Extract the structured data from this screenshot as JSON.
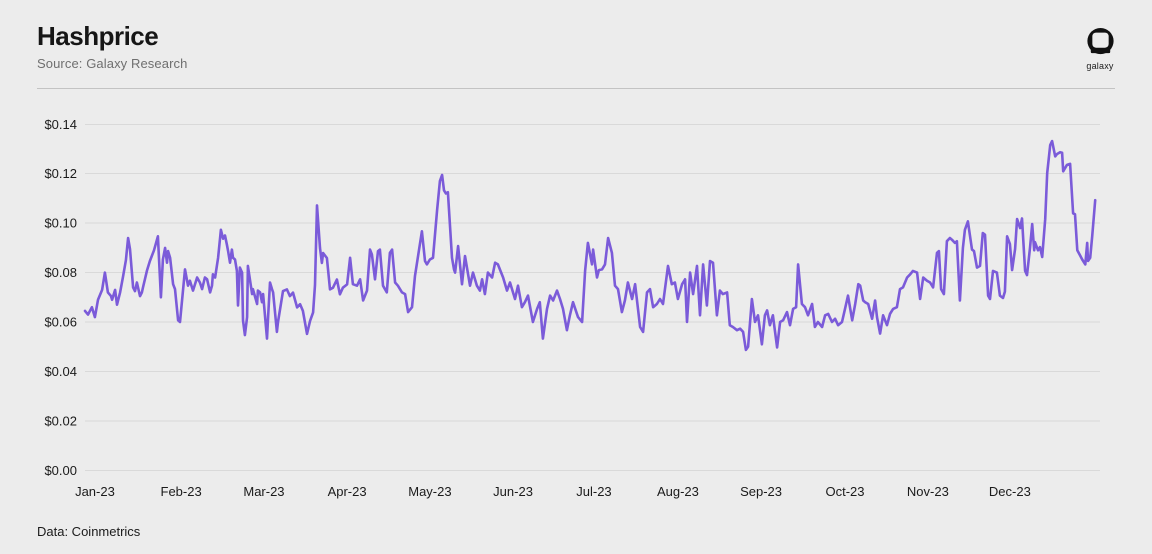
{
  "header": {
    "title": "Hashprice",
    "subtitle": "Source: Galaxy Research",
    "logo_label": "galaxy"
  },
  "footer": {
    "data_source": "Data: Coinmetrics"
  },
  "colors": {
    "background": "#ececec",
    "line": "#7b5bd9",
    "gridline": "#d9d9d9",
    "divider": "#c3c3c3",
    "axis_label": "#1b1b1b",
    "title": "#161616",
    "subtitle": "#6f6f6f",
    "logo": "#111111"
  },
  "chart_data": {
    "type": "line",
    "title": "Hashprice",
    "xlabel": "",
    "ylabel": "",
    "unit": "USD",
    "grid": "horizontal",
    "legend": "none",
    "ylim": [
      0,
      0.14
    ],
    "y_tick_step": 0.02,
    "y_tick_labels": [
      "$0.00",
      "$0.02",
      "$0.04",
      "$0.06",
      "$0.08",
      "$0.10",
      "$0.12",
      "$0.14"
    ],
    "x_tick_labels": [
      "Jan-23",
      "Feb-23",
      "Mar-23",
      "Apr-23",
      "May-23",
      "Jun-23",
      "Jul-23",
      "Aug-23",
      "Sep-23",
      "Oct-23",
      "Nov-23",
      "Dec-23"
    ],
    "x_tick_days": [
      3.6,
      34.8,
      64.8,
      94.9,
      124.9,
      155.0,
      184.3,
      214.7,
      244.8,
      275.2,
      305.2,
      334.9
    ],
    "x_range_days": [
      0,
      365.8
    ],
    "points": [
      [
        0,
        0.0645
      ],
      [
        1.1,
        0.063
      ],
      [
        2.5,
        0.066
      ],
      [
        3.6,
        0.062
      ],
      [
        4.7,
        0.069
      ],
      [
        6.2,
        0.073
      ],
      [
        7.2,
        0.08
      ],
      [
        8.3,
        0.072
      ],
      [
        9.4,
        0.0705
      ],
      [
        9.8,
        0.069
      ],
      [
        10.9,
        0.073
      ],
      [
        11.6,
        0.067
      ],
      [
        12.7,
        0.072
      ],
      [
        13.8,
        0.0785
      ],
      [
        14.8,
        0.085
      ],
      [
        15.6,
        0.094
      ],
      [
        16.3,
        0.0895
      ],
      [
        17,
        0.08
      ],
      [
        17.4,
        0.074
      ],
      [
        18.1,
        0.0725
      ],
      [
        18.8,
        0.076
      ],
      [
        19.9,
        0.0705
      ],
      [
        20.6,
        0.072
      ],
      [
        21,
        0.074
      ],
      [
        22.5,
        0.081
      ],
      [
        23.5,
        0.0847
      ],
      [
        25,
        0.089
      ],
      [
        26.4,
        0.0947
      ],
      [
        27.5,
        0.07
      ],
      [
        28.2,
        0.0853
      ],
      [
        29,
        0.09
      ],
      [
        29.7,
        0.084
      ],
      [
        30.1,
        0.0887
      ],
      [
        30.8,
        0.086
      ],
      [
        31.9,
        0.0753
      ],
      [
        32.6,
        0.0733
      ],
      [
        33.7,
        0.0607
      ],
      [
        34.4,
        0.06
      ],
      [
        36.2,
        0.0813
      ],
      [
        37.3,
        0.0747
      ],
      [
        38,
        0.0767
      ],
      [
        39.1,
        0.0727
      ],
      [
        40.6,
        0.078
      ],
      [
        41.6,
        0.076
      ],
      [
        42.4,
        0.0733
      ],
      [
        43.4,
        0.078
      ],
      [
        44.2,
        0.0773
      ],
      [
        45.3,
        0.072
      ],
      [
        46,
        0.0747
      ],
      [
        46.3,
        0.0793
      ],
      [
        47.1,
        0.078
      ],
      [
        48.2,
        0.086
      ],
      [
        49.2,
        0.0973
      ],
      [
        50,
        0.0937
      ],
      [
        50.7,
        0.095
      ],
      [
        51.4,
        0.0913
      ],
      [
        51.8,
        0.0887
      ],
      [
        52.5,
        0.084
      ],
      [
        53.2,
        0.0893
      ],
      [
        53.6,
        0.086
      ],
      [
        54.3,
        0.0853
      ],
      [
        55,
        0.0807
      ],
      [
        55.4,
        0.0667
      ],
      [
        56.1,
        0.082
      ],
      [
        56.9,
        0.08
      ],
      [
        57.2,
        0.0607
      ],
      [
        57.9,
        0.0547
      ],
      [
        58.7,
        0.062
      ],
      [
        59,
        0.0827
      ],
      [
        60.5,
        0.0713
      ],
      [
        60.8,
        0.0733
      ],
      [
        62.3,
        0.0673
      ],
      [
        62.6,
        0.0727
      ],
      [
        63.4,
        0.072
      ],
      [
        64.1,
        0.068
      ],
      [
        64.5,
        0.0713
      ],
      [
        65.9,
        0.0533
      ],
      [
        66.3,
        0.062
      ],
      [
        67,
        0.076
      ],
      [
        67.7,
        0.0733
      ],
      [
        68.1,
        0.072
      ],
      [
        69.5,
        0.056
      ],
      [
        69.9,
        0.06
      ],
      [
        71.7,
        0.0725
      ],
      [
        73.1,
        0.0732
      ],
      [
        74.2,
        0.0705
      ],
      [
        75.3,
        0.0719
      ],
      [
        76.8,
        0.0659
      ],
      [
        77.9,
        0.0672
      ],
      [
        78.9,
        0.0645
      ],
      [
        80.4,
        0.0552
      ],
      [
        81.5,
        0.0605
      ],
      [
        82.6,
        0.0639
      ],
      [
        83.3,
        0.075
      ],
      [
        84,
        0.1072
      ],
      [
        85.1,
        0.0899
      ],
      [
        85.8,
        0.0839
      ],
      [
        86.2,
        0.0879
      ],
      [
        87.6,
        0.0859
      ],
      [
        88.7,
        0.0732
      ],
      [
        89.8,
        0.0739
      ],
      [
        91.2,
        0.0772
      ],
      [
        92.3,
        0.0712
      ],
      [
        93.4,
        0.0739
      ],
      [
        94.9,
        0.0752
      ],
      [
        96,
        0.086
      ],
      [
        97,
        0.0753
      ],
      [
        98.5,
        0.0747
      ],
      [
        99.6,
        0.0773
      ],
      [
        100.7,
        0.0687
      ],
      [
        102.1,
        0.0727
      ],
      [
        103.2,
        0.0893
      ],
      [
        103.9,
        0.0873
      ],
      [
        105,
        0.0773
      ],
      [
        106.1,
        0.0887
      ],
      [
        106.8,
        0.0893
      ],
      [
        107.9,
        0.0747
      ],
      [
        109.3,
        0.072
      ],
      [
        110.4,
        0.088
      ],
      [
        111.2,
        0.0893
      ],
      [
        112.3,
        0.076
      ],
      [
        113.3,
        0.0747
      ],
      [
        114.8,
        0.072
      ],
      [
        115.9,
        0.0713
      ],
      [
        117,
        0.064
      ],
      [
        118.4,
        0.066
      ],
      [
        119.5,
        0.0787
      ],
      [
        122,
        0.0967
      ],
      [
        123.1,
        0.0847
      ],
      [
        123.8,
        0.0833
      ],
      [
        124.9,
        0.0853
      ],
      [
        126,
        0.086
      ],
      [
        127.5,
        0.1053
      ],
      [
        128.5,
        0.117
      ],
      [
        129.3,
        0.1195
      ],
      [
        130,
        0.1133
      ],
      [
        130.7,
        0.112
      ],
      [
        131.4,
        0.1125
      ],
      [
        132.9,
        0.086
      ],
      [
        133.6,
        0.0813
      ],
      [
        134,
        0.08
      ],
      [
        135.1,
        0.0907
      ],
      [
        136.5,
        0.0753
      ],
      [
        137.6,
        0.0867
      ],
      [
        139.4,
        0.0747
      ],
      [
        140.5,
        0.08
      ],
      [
        141.9,
        0.0747
      ],
      [
        143,
        0.0727
      ],
      [
        143.8,
        0.0773
      ],
      [
        144.8,
        0.0713
      ],
      [
        145.9,
        0.08
      ],
      [
        147.4,
        0.078
      ],
      [
        148.5,
        0.084
      ],
      [
        149.5,
        0.0833
      ],
      [
        151.4,
        0.078
      ],
      [
        152.8,
        0.0727
      ],
      [
        153.9,
        0.076
      ],
      [
        155.7,
        0.0693
      ],
      [
        156.8,
        0.0747
      ],
      [
        158.2,
        0.066
      ],
      [
        159.3,
        0.068
      ],
      [
        160.4,
        0.0707
      ],
      [
        162.2,
        0.06
      ],
      [
        163.7,
        0.0653
      ],
      [
        164.7,
        0.068
      ],
      [
        165.8,
        0.0533
      ],
      [
        167.3,
        0.0653
      ],
      [
        168.4,
        0.0707
      ],
      [
        169.5,
        0.0687
      ],
      [
        170.9,
        0.0727
      ],
      [
        172,
        0.0693
      ],
      [
        173.1,
        0.0653
      ],
      [
        174.5,
        0.0567
      ],
      [
        175.6,
        0.0627
      ],
      [
        176.7,
        0.068
      ],
      [
        178.5,
        0.062
      ],
      [
        180,
        0.06
      ],
      [
        181.1,
        0.0807
      ],
      [
        182.1,
        0.092
      ],
      [
        183.6,
        0.0833
      ],
      [
        184,
        0.0893
      ],
      [
        185.4,
        0.078
      ],
      [
        186.1,
        0.081
      ],
      [
        187.2,
        0.0813
      ],
      [
        188.3,
        0.0833
      ],
      [
        189.4,
        0.094
      ],
      [
        190.8,
        0.088
      ],
      [
        191.9,
        0.0747
      ],
      [
        193,
        0.0733
      ],
      [
        194.4,
        0.064
      ],
      [
        195.5,
        0.0687
      ],
      [
        196.6,
        0.076
      ],
      [
        198.1,
        0.0693
      ],
      [
        199.2,
        0.0753
      ],
      [
        201,
        0.058
      ],
      [
        202.1,
        0.056
      ],
      [
        203.5,
        0.072
      ],
      [
        204.6,
        0.0733
      ],
      [
        205.7,
        0.066
      ],
      [
        207.1,
        0.0673
      ],
      [
        208.2,
        0.0693
      ],
      [
        209.3,
        0.0673
      ],
      [
        211.1,
        0.0827
      ],
      [
        212.5,
        0.0753
      ],
      [
        213.6,
        0.076
      ],
      [
        214.7,
        0.0693
      ],
      [
        216.2,
        0.0753
      ],
      [
        217.3,
        0.0773
      ],
      [
        218,
        0.06
      ],
      [
        219.1,
        0.08
      ],
      [
        220.2,
        0.0713
      ],
      [
        221.6,
        0.0827
      ],
      [
        222.7,
        0.0627
      ],
      [
        223.8,
        0.0833
      ],
      [
        225.2,
        0.0667
      ],
      [
        226.3,
        0.0847
      ],
      [
        227.4,
        0.084
      ],
      [
        228.8,
        0.0627
      ],
      [
        229.9,
        0.0727
      ],
      [
        231,
        0.0713
      ],
      [
        232.5,
        0.072
      ],
      [
        233.5,
        0.0587
      ],
      [
        234.6,
        0.058
      ],
      [
        236.1,
        0.0567
      ],
      [
        237.2,
        0.0573
      ],
      [
        238.3,
        0.056
      ],
      [
        239.3,
        0.0487
      ],
      [
        240.1,
        0.05
      ],
      [
        241.5,
        0.0693
      ],
      [
        242.6,
        0.06
      ],
      [
        243.7,
        0.0627
      ],
      [
        245.1,
        0.051
      ],
      [
        246.2,
        0.0627
      ],
      [
        247,
        0.0647
      ],
      [
        248,
        0.0587
      ],
      [
        249.1,
        0.0627
      ],
      [
        250.6,
        0.0497
      ],
      [
        251.7,
        0.06
      ],
      [
        252.8,
        0.0607
      ],
      [
        254.2,
        0.064
      ],
      [
        255.3,
        0.0587
      ],
      [
        256.4,
        0.0653
      ],
      [
        257.5,
        0.066
      ],
      [
        258.2,
        0.0833
      ],
      [
        259.6,
        0.0673
      ],
      [
        260.7,
        0.066
      ],
      [
        261.8,
        0.0627
      ],
      [
        263.3,
        0.0673
      ],
      [
        264.3,
        0.058
      ],
      [
        265.4,
        0.06
      ],
      [
        266.9,
        0.058
      ],
      [
        268,
        0.0627
      ],
      [
        269.1,
        0.0633
      ],
      [
        270.5,
        0.06
      ],
      [
        271.6,
        0.0613
      ],
      [
        272.7,
        0.0587
      ],
      [
        274.1,
        0.06
      ],
      [
        275.2,
        0.0653
      ],
      [
        276.3,
        0.0707
      ],
      [
        277.8,
        0.0607
      ],
      [
        278.9,
        0.0673
      ],
      [
        280,
        0.0753
      ],
      [
        280.7,
        0.0747
      ],
      [
        281.8,
        0.0687
      ],
      [
        282.5,
        0.068
      ],
      [
        283.6,
        0.0673
      ],
      [
        285,
        0.0613
      ],
      [
        286.1,
        0.0687
      ],
      [
        286.8,
        0.062
      ],
      [
        287.9,
        0.0553
      ],
      [
        289,
        0.0627
      ],
      [
        290.4,
        0.0587
      ],
      [
        291.5,
        0.0633
      ],
      [
        292.6,
        0.0653
      ],
      [
        294,
        0.066
      ],
      [
        295.1,
        0.0733
      ],
      [
        296.2,
        0.074
      ],
      [
        297.7,
        0.078
      ],
      [
        298.8,
        0.0793
      ],
      [
        299.8,
        0.0807
      ],
      [
        301.3,
        0.08
      ],
      [
        302.4,
        0.0693
      ],
      [
        303.5,
        0.078
      ],
      [
        304.9,
        0.0767
      ],
      [
        306,
        0.076
      ],
      [
        307.1,
        0.074
      ],
      [
        308.5,
        0.088
      ],
      [
        309.2,
        0.0887
      ],
      [
        310,
        0.0733
      ],
      [
        311,
        0.0713
      ],
      [
        312.1,
        0.0927
      ],
      [
        313.2,
        0.094
      ],
      [
        313.9,
        0.0933
      ],
      [
        315,
        0.092
      ],
      [
        315.7,
        0.0927
      ],
      [
        316.8,
        0.0687
      ],
      [
        317.9,
        0.09
      ],
      [
        318.6,
        0.0973
      ],
      [
        319.7,
        0.1007
      ],
      [
        321.2,
        0.0893
      ],
      [
        321.9,
        0.0887
      ],
      [
        323,
        0.082
      ],
      [
        324.1,
        0.0827
      ],
      [
        325.1,
        0.096
      ],
      [
        325.9,
        0.0953
      ],
      [
        327,
        0.0707
      ],
      [
        327.7,
        0.0693
      ],
      [
        328.8,
        0.0807
      ],
      [
        330.2,
        0.08
      ],
      [
        331.3,
        0.0707
      ],
      [
        332.4,
        0.0697
      ],
      [
        333.1,
        0.0723
      ],
      [
        333.9,
        0.0947
      ],
      [
        334.9,
        0.0916
      ],
      [
        335.7,
        0.081
      ],
      [
        336.8,
        0.0896
      ],
      [
        337.5,
        0.1017
      ],
      [
        338.6,
        0.098
      ],
      [
        339.3,
        0.1019
      ],
      [
        340.4,
        0.0807
      ],
      [
        341.1,
        0.079
      ],
      [
        342.2,
        0.09
      ],
      [
        343,
        0.0996
      ],
      [
        343.7,
        0.089
      ],
      [
        344,
        0.0923
      ],
      [
        345.1,
        0.089
      ],
      [
        345.8,
        0.0903
      ],
      [
        346.6,
        0.0863
      ],
      [
        347.7,
        0.1016
      ],
      [
        348.4,
        0.1203
      ],
      [
        349.5,
        0.1316
      ],
      [
        350.2,
        0.1332
      ],
      [
        351.3,
        0.127
      ],
      [
        352,
        0.128
      ],
      [
        353.1,
        0.1287
      ],
      [
        353.8,
        0.1285
      ],
      [
        354.2,
        0.121
      ],
      [
        355.6,
        0.1236
      ],
      [
        356.7,
        0.124
      ],
      [
        357.8,
        0.104
      ],
      [
        358.5,
        0.1036
      ],
      [
        359.3,
        0.089
      ],
      [
        360.3,
        0.087
      ],
      [
        361.1,
        0.0853
      ],
      [
        362.2,
        0.0833
      ],
      [
        362.9,
        0.092
      ],
      [
        363.2,
        0.0847
      ],
      [
        364,
        0.086
      ],
      [
        364.7,
        0.0947
      ],
      [
        365.8,
        0.1093
      ]
    ]
  }
}
